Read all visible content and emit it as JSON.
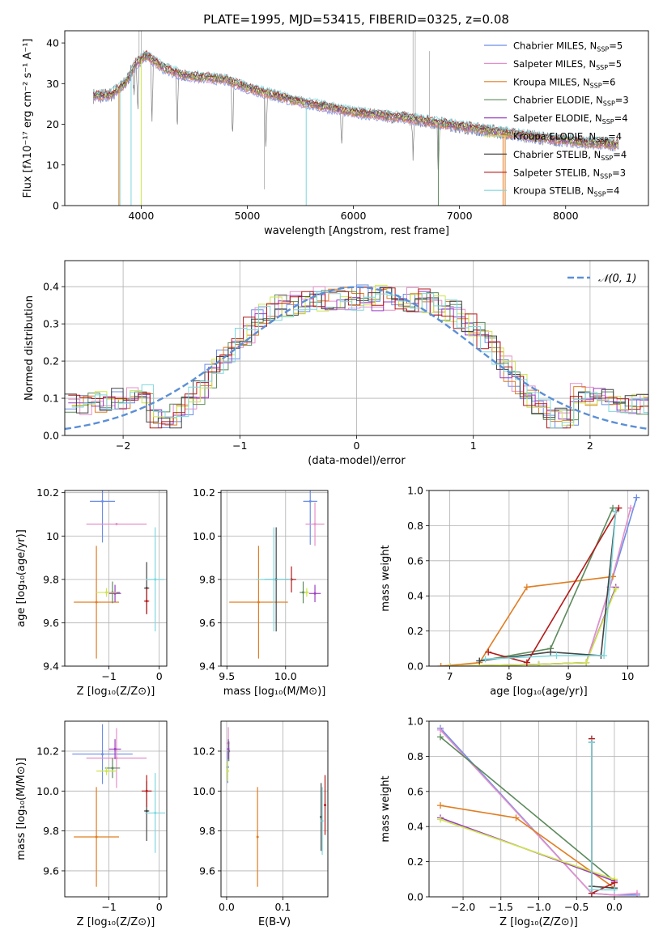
{
  "figure_title": "PLATE=1995, MJD=53415, FIBERID=0325, z=0.08",
  "models": [
    {
      "name": "Chabrier MILES",
      "nssp": "5",
      "color": "#6b8ee6"
    },
    {
      "name": "Salpeter MILES",
      "nssp": "5",
      "color": "#e58fc9"
    },
    {
      "name": "Kroupa MILES",
      "nssp": "6",
      "color": "#e07e23"
    },
    {
      "name": "Chabrier ELODIE",
      "nssp": "3",
      "color": "#5c8a5c"
    },
    {
      "name": "Salpeter ELODIE",
      "nssp": "4",
      "color": "#9b3fc1"
    },
    {
      "name": "Kroupa ELODIE",
      "nssp": "4",
      "color": "#cde64a"
    },
    {
      "name": "Chabrier STELIB",
      "nssp": "4",
      "color": "#444444"
    },
    {
      "name": "Salpeter STELIB",
      "nssp": "3",
      "color": "#b41a1a"
    },
    {
      "name": "Kroupa STELIB",
      "nssp": "4",
      "color": "#7ed7de"
    }
  ],
  "chart_data": [
    {
      "type": "line",
      "id": "spectrum",
      "xlabel": "wavelength [Angstrom, rest frame]",
      "ylabel": "Flux [fλ10⁻¹⁷ erg cm⁻² s⁻¹ A⁻¹]",
      "xlim": [
        3280,
        8780
      ],
      "ylim": [
        0,
        43
      ],
      "xticks": [
        4000,
        5000,
        6000,
        7000,
        8000
      ],
      "yticks": [
        0,
        10,
        20,
        30,
        40
      ],
      "data_color": "#7f7f7f",
      "continuum": [
        [
          3550,
          27
        ],
        [
          3700,
          27
        ],
        [
          3850,
          30
        ],
        [
          3950,
          35
        ],
        [
          4050,
          37
        ],
        [
          4200,
          34
        ],
        [
          4400,
          32
        ],
        [
          4600,
          31.5
        ],
        [
          4800,
          31
        ],
        [
          5000,
          29
        ],
        [
          5200,
          27.5
        ],
        [
          5500,
          25.5
        ],
        [
          6000,
          23
        ],
        [
          6500,
          21.5
        ],
        [
          7000,
          19.5
        ],
        [
          7400,
          18
        ],
        [
          7800,
          16.5
        ],
        [
          8200,
          15.5
        ],
        [
          8500,
          15
        ]
      ],
      "dips": [
        [
          3934,
          20
        ],
        [
          3969,
          18
        ],
        [
          4102,
          12
        ],
        [
          4340,
          10
        ],
        [
          4861,
          8
        ],
        [
          5175,
          3
        ],
        [
          5890,
          8
        ],
        [
          6563,
          6
        ],
        [
          6800,
          0
        ]
      ],
      "spikes": [
        [
          3980,
          43
        ],
        [
          4000,
          43
        ],
        [
          5160,
          4
        ],
        [
          6562,
          43
        ],
        [
          6583,
          43
        ],
        [
          6716,
          38
        ]
      ],
      "grid": false
    },
    {
      "type": "line",
      "id": "residuals",
      "xlabel": "(data-model)/error",
      "ylabel": "Normed distribution",
      "xlim": [
        -2.5,
        2.5
      ],
      "ylim": [
        0,
        0.47
      ],
      "xticks": [
        -2,
        -1,
        0,
        1,
        2
      ],
      "yticks": [
        0.0,
        0.1,
        0.2,
        0.3,
        0.4
      ],
      "series_name": "𝒩(0, 1)",
      "grid": true
    },
    {
      "type": "scatter",
      "id": "age_vs_Z",
      "xlabel": "Z [log₁₀(Z/Z⊙)]",
      "ylabel": "age  [log₁₀(age/yr)]",
      "xlim": [
        -1.88,
        0.15
      ],
      "ylim": [
        9.4,
        10.21
      ],
      "xticks": [
        -1,
        0
      ],
      "yticks": [
        9.4,
        9.6,
        9.8,
        10.0,
        10.2
      ],
      "points": [
        [
          -1.13,
          10.16,
          0.25,
          0.19
        ],
        [
          -0.85,
          10.055,
          0.6,
          0.0
        ],
        [
          -1.25,
          9.695,
          0.45,
          0.26
        ],
        [
          -0.93,
          9.74,
          0.15,
          0.05
        ],
        [
          -0.88,
          9.735,
          0.12,
          0.04
        ],
        [
          -1.05,
          9.74,
          0.2,
          0.02
        ],
        [
          -0.25,
          9.76,
          0.05,
          0.12
        ],
        [
          -0.25,
          9.7,
          0.05,
          0.06
        ],
        [
          -0.08,
          9.8,
          0.18,
          0.24
        ]
      ],
      "grid": true
    },
    {
      "type": "scatter",
      "id": "age_vs_mass",
      "xlabel": "mass [log₁₀(M/M⊙)]",
      "ylabel": "",
      "xlim": [
        9.45,
        10.36
      ],
      "ylim": [
        9.4,
        10.21
      ],
      "xticks": [
        9.5,
        10.0
      ],
      "yticks": [
        9.4,
        9.6,
        9.8,
        10.0,
        10.2
      ],
      "points": [
        [
          10.21,
          10.16,
          0.06,
          0.2
        ],
        [
          10.25,
          10.055,
          0.08,
          0.1
        ],
        [
          9.77,
          9.695,
          0.25,
          0.26
        ],
        [
          10.15,
          9.74,
          0.03,
          0.05
        ],
        [
          10.25,
          9.735,
          0.05,
          0.04
        ],
        [
          10.18,
          9.74,
          0.02,
          0.02
        ],
        [
          9.92,
          9.8,
          0.1,
          0.24
        ],
        [
          10.05,
          9.8,
          0.04,
          0.06
        ],
        [
          9.9,
          9.8,
          0.15,
          0.24
        ]
      ],
      "grid": true
    },
    {
      "type": "line",
      "id": "massweight_vs_age",
      "xlabel": "age  [log₁₀(age/yr)]",
      "ylabel": "mass weight",
      "xlim": [
        6.65,
        10.35
      ],
      "ylim": [
        0,
        1.0
      ],
      "xticks": [
        7,
        8,
        9,
        10
      ],
      "yticks": [
        0.0,
        0.2,
        0.4,
        0.6,
        0.8,
        1.0
      ],
      "series": [
        {
          "model": 0,
          "points": [
            [
              7.0,
              0.0
            ],
            [
              8.5,
              0.01
            ],
            [
              9.3,
              0.02
            ],
            [
              9.7,
              0.45
            ],
            [
              10.15,
              0.96
            ]
          ]
        },
        {
          "model": 1,
          "points": [
            [
              7.0,
              0.0
            ],
            [
              8.5,
              0.01
            ],
            [
              9.3,
              0.02
            ],
            [
              9.7,
              0.45
            ],
            [
              10.05,
              0.9
            ]
          ]
        },
        {
          "model": 2,
          "points": [
            [
              6.85,
              0.0
            ],
            [
              7.5,
              0.02
            ],
            [
              8.3,
              0.45
            ],
            [
              9.75,
              0.51
            ]
          ]
        },
        {
          "model": 3,
          "points": [
            [
              7.5,
              0.03
            ],
            [
              8.7,
              0.1
            ],
            [
              9.75,
              0.9
            ]
          ]
        },
        {
          "model": 4,
          "points": [
            [
              7.0,
              0.0
            ],
            [
              8.5,
              0.01
            ],
            [
              9.3,
              0.02
            ],
            [
              9.8,
              0.45
            ]
          ]
        },
        {
          "model": 5,
          "points": [
            [
              7.0,
              0.0
            ],
            [
              8.5,
              0.01
            ],
            [
              9.3,
              0.02
            ],
            [
              9.8,
              0.44
            ]
          ]
        },
        {
          "model": 6,
          "points": [
            [
              7.5,
              0.03
            ],
            [
              8.7,
              0.08
            ],
            [
              9.55,
              0.06
            ],
            [
              9.8,
              0.88
            ]
          ]
        },
        {
          "model": 7,
          "points": [
            [
              7.65,
              0.08
            ],
            [
              8.3,
              0.02
            ],
            [
              9.85,
              0.9
            ]
          ]
        },
        {
          "model": 8,
          "points": [
            [
              7.6,
              0.04
            ],
            [
              8.8,
              0.06
            ],
            [
              9.6,
              0.06
            ],
            [
              9.8,
              0.88
            ]
          ]
        }
      ],
      "grid": true
    },
    {
      "type": "scatter",
      "id": "mass_vs_Z",
      "xlabel": "Z [log₁₀(Z/Z⊙)]",
      "ylabel": "mass [log₁₀(M/M⊙)]",
      "xlim": [
        -1.88,
        0.15
      ],
      "ylim": [
        9.47,
        10.35
      ],
      "xticks": [
        -1,
        0
      ],
      "yticks": [
        9.6,
        9.8,
        10.0,
        10.2
      ],
      "points": [
        [
          -1.13,
          10.185,
          0.6,
          0.15
        ],
        [
          -0.85,
          10.165,
          0.6,
          0.15
        ],
        [
          -1.25,
          9.77,
          0.45,
          0.25
        ],
        [
          -0.93,
          10.115,
          0.15,
          0.05
        ],
        [
          -0.88,
          10.21,
          0.12,
          0.05
        ],
        [
          -1.05,
          10.1,
          0.2,
          0.02
        ],
        [
          -0.25,
          9.9,
          0.05,
          0.15
        ],
        [
          -0.25,
          10.0,
          0.1,
          0.08
        ],
        [
          -0.08,
          9.89,
          0.2,
          0.2
        ]
      ],
      "grid": true
    },
    {
      "type": "scatter",
      "id": "mass_vs_ebv",
      "xlabel": "E(B-V)",
      "ylabel": "",
      "xlim": [
        -0.01,
        0.18
      ],
      "ylim": [
        9.47,
        10.35
      ],
      "xticks": [
        0.0,
        0.1
      ],
      "yticks": [
        9.6,
        9.8,
        10.0,
        10.2
      ],
      "points": [
        [
          0.002,
          10.12,
          0,
          0.08
        ],
        [
          0.003,
          10.24,
          0,
          0.08
        ],
        [
          0.055,
          9.77,
          0,
          0.25
        ],
        [
          0.004,
          10.2,
          0,
          0.05
        ],
        [
          0.003,
          10.21,
          0,
          0.05
        ],
        [
          0.002,
          10.1,
          0,
          0.05
        ],
        [
          0.168,
          9.87,
          0,
          0.17
        ],
        [
          0.175,
          9.93,
          0,
          0.15
        ],
        [
          0.17,
          9.85,
          0,
          0.17
        ]
      ],
      "grid": true
    },
    {
      "type": "line",
      "id": "massweight_vs_Z",
      "xlabel": "Z [log₁₀(Z/Z⊙)]",
      "ylabel": "mass weight",
      "xlim": [
        -2.45,
        0.45
      ],
      "ylim": [
        0,
        1.0
      ],
      "xticks": [
        -2.0,
        -1.5,
        -1.0,
        -0.5,
        0.0
      ],
      "yticks": [
        0.0,
        0.2,
        0.4,
        0.6,
        0.8,
        1.0
      ],
      "series": [
        {
          "model": 0,
          "points": [
            [
              -2.3,
              0.96
            ],
            [
              -0.3,
              0.02
            ],
            [
              0.0,
              0.01
            ],
            [
              0.3,
              0.01
            ]
          ]
        },
        {
          "model": 1,
          "points": [
            [
              -2.3,
              0.95
            ],
            [
              -0.3,
              0.02
            ],
            [
              0.0,
              0.01
            ],
            [
              0.3,
              0.02
            ]
          ]
        },
        {
          "model": 2,
          "points": [
            [
              -2.3,
              0.52
            ],
            [
              -1.3,
              0.45
            ],
            [
              0.0,
              0.05
            ]
          ]
        },
        {
          "model": 3,
          "points": [
            [
              -2.3,
              0.91
            ],
            [
              0.0,
              0.09
            ]
          ]
        },
        {
          "model": 4,
          "points": [
            [
              -2.3,
              0.45
            ],
            [
              0.0,
              0.09
            ]
          ]
        },
        {
          "model": 5,
          "points": [
            [
              -2.3,
              0.44
            ],
            [
              0.0,
              0.1
            ]
          ]
        },
        {
          "model": 6,
          "points": [
            [
              -0.3,
              0.88
            ],
            [
              -0.3,
              0.06
            ],
            [
              0.0,
              0.05
            ]
          ]
        },
        {
          "model": 7,
          "points": [
            [
              -0.3,
              0.9
            ],
            [
              -0.3,
              0.02
            ],
            [
              0.0,
              0.08
            ]
          ]
        },
        {
          "model": 8,
          "points": [
            [
              -0.3,
              0.88
            ],
            [
              -0.3,
              0.04
            ],
            [
              0.0,
              0.04
            ]
          ]
        }
      ],
      "grid": true
    }
  ]
}
